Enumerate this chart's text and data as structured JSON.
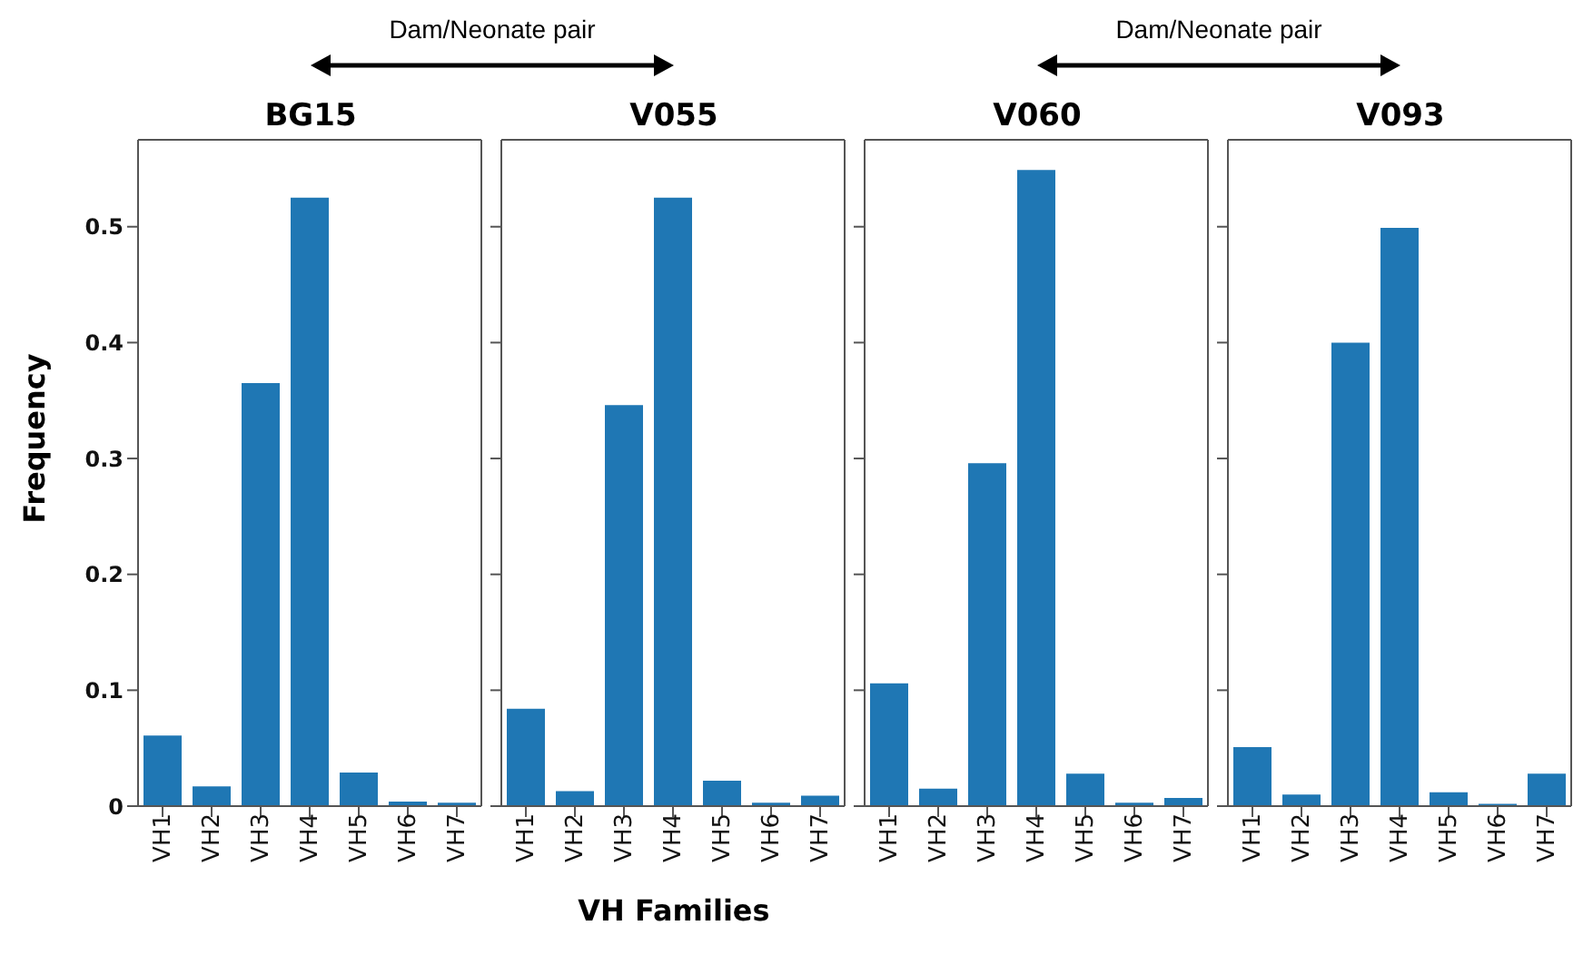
{
  "chart_data": [
    {
      "type": "bar",
      "title": "BG15",
      "ylabel": "Frequency",
      "annotations": [
        "Dam/Neonate pair"
      ],
      "categories": [
        "VH1",
        "VH2",
        "VH3",
        "VH4",
        "VH5",
        "VH6",
        "VH7"
      ],
      "values": [
        0.061,
        0.017,
        0.365,
        0.525,
        0.029,
        0.004,
        0.003
      ],
      "color": "#1f77b4",
      "ylim": [
        0,
        0.575
      ],
      "yticks": [
        0,
        0.1,
        0.2,
        0.3,
        0.4,
        0.5
      ]
    },
    {
      "type": "bar",
      "title": "V055",
      "xlabel": "VH Families",
      "categories": [
        "VH1",
        "VH2",
        "VH3",
        "VH4",
        "VH5",
        "VH6",
        "VH7"
      ],
      "values": [
        0.084,
        0.013,
        0.346,
        0.525,
        0.022,
        0.003,
        0.009
      ],
      "color": "#1f77b4",
      "ylim": [
        0,
        0.575
      ],
      "yticks": [
        0,
        0.1,
        0.2,
        0.3,
        0.4,
        0.5
      ],
      "tick_labels": "x"
    },
    {
      "type": "bar",
      "title": "V060",
      "annotations": [
        "Dam/Neonate pair"
      ],
      "categories": [
        "VH1",
        "VH2",
        "VH3",
        "VH4",
        "VH5",
        "VH6",
        "VH7"
      ],
      "values": [
        0.106,
        0.015,
        0.296,
        0.549,
        0.028,
        0.003,
        0.007
      ],
      "color": "#1f77b4",
      "ylim": [
        0,
        0.575
      ],
      "yticks": [
        0,
        0.1,
        0.2,
        0.3,
        0.4,
        0.5
      ],
      "tick_labels": "x"
    },
    {
      "type": "bar",
      "title": "V093",
      "categories": [
        "VH1",
        "VH2",
        "VH3",
        "VH4",
        "VH5",
        "VH6",
        "VH7"
      ],
      "values": [
        0.051,
        0.01,
        0.4,
        0.499,
        0.012,
        0.002,
        0.028
      ],
      "color": "#1f77b4",
      "ylim": [
        0,
        0.575
      ],
      "yticks": [
        0,
        0.1,
        0.2,
        0.3,
        0.4,
        0.5
      ],
      "tick_labels": "x"
    }
  ]
}
